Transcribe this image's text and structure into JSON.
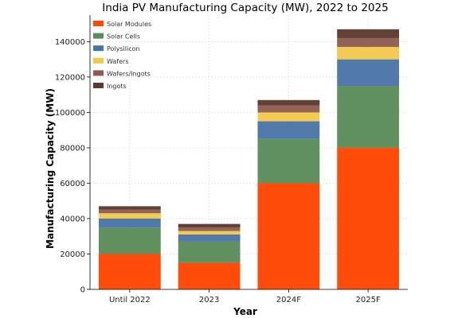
{
  "chart_data": {
    "type": "bar",
    "stacked": true,
    "title": "India PV Manufacturing Capacity (MW), 2022 to 2025",
    "xlabel": "Year",
    "ylabel": "Manufacturing Capacity (MW)",
    "categories": [
      "Until 2022",
      "2023",
      "2024F",
      "2025F"
    ],
    "ylim": [
      0,
      155000
    ],
    "yticks": [
      0,
      20000,
      40000,
      60000,
      80000,
      100000,
      120000,
      140000
    ],
    "ytick_labels": [
      "0",
      "20000",
      "40000",
      "60000",
      "80000",
      "100000",
      "120000",
      "140000"
    ],
    "grid": true,
    "legend_position": "top-left",
    "series": [
      {
        "name": "Solar Modules",
        "color": "#ff4500",
        "values": [
          20000,
          15000,
          60000,
          80000
        ]
      },
      {
        "name": "Solar Cells",
        "color": "#5b8c5a",
        "values": [
          15000,
          12000,
          25000,
          35000
        ]
      },
      {
        "name": "Polysilicon",
        "color": "#4a74a5",
        "values": [
          5000,
          4000,
          10000,
          15000
        ]
      },
      {
        "name": "Wafers",
        "color": "#f2c84b",
        "values": [
          3000,
          2000,
          5000,
          7000
        ]
      },
      {
        "name": "Wafers/Ingots",
        "color": "#8c5e4e",
        "values": [
          2000,
          2000,
          4000,
          5000
        ]
      },
      {
        "name": "Ingots",
        "color": "#5c3a2e",
        "values": [
          2000,
          2000,
          3000,
          5000
        ]
      }
    ]
  }
}
